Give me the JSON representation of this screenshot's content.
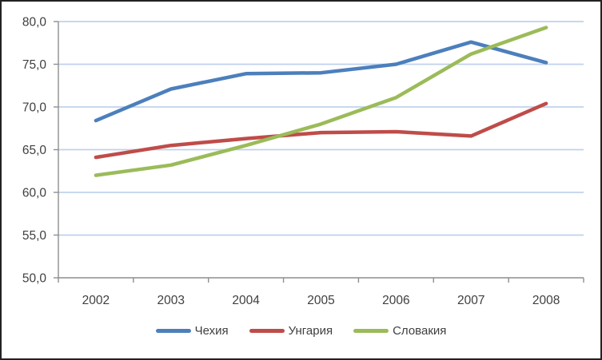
{
  "chart_data": {
    "type": "line",
    "title": "",
    "xlabel": "",
    "ylabel": "",
    "categories": [
      "2002",
      "2003",
      "2004",
      "2005",
      "2006",
      "2007",
      "2008"
    ],
    "series": [
      {
        "name": "Чехия",
        "color": "#4C7FBC",
        "values": [
          68.4,
          72.1,
          73.9,
          74.0,
          75.0,
          77.6,
          75.2
        ]
      },
      {
        "name": "Унгария",
        "color": "#BF4C49",
        "values": [
          64.1,
          65.5,
          66.3,
          67.0,
          67.1,
          66.6,
          70.4
        ]
      },
      {
        "name": "Словакия",
        "color": "#9BBB59",
        "values": [
          62.0,
          63.2,
          65.5,
          68.0,
          71.1,
          76.2,
          79.3
        ]
      }
    ],
    "y_axis": {
      "min": 50,
      "max": 80,
      "step": 5,
      "tick_values": [
        50,
        55,
        60,
        65,
        70,
        75,
        80
      ],
      "tick_labels": [
        "50,0",
        "55,0",
        "60,0",
        "65,0",
        "70,0",
        "75,0",
        "80,0"
      ]
    },
    "grid": "horizontal",
    "legend_position": "bottom",
    "colors": {
      "gridline": "#bfd2ec",
      "axis": "#8e8e8e",
      "text": "#3f3f3f",
      "background": "#ffffff",
      "frame_border": "#222222"
    }
  }
}
